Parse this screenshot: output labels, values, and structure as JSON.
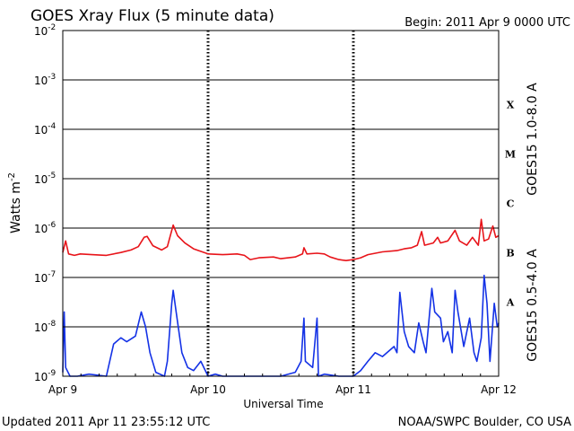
{
  "chart_data": {
    "type": "line",
    "title": "GOES Xray Flux (5 minute data)",
    "begin": "Begin:  2011 Apr 9 0000 UTC",
    "xlabel": "Universal Time",
    "ylabel": "Watts m",
    "ylabel_exp": "-2",
    "yscale": "log",
    "ylim": [
      1e-09,
      0.01
    ],
    "ytick_labels": [
      {
        "value": 1e-09,
        "base": "10",
        "exp": "-9"
      },
      {
        "value": 1e-08,
        "base": "10",
        "exp": "-8"
      },
      {
        "value": 1e-07,
        "base": "10",
        "exp": "-7"
      },
      {
        "value": 1e-06,
        "base": "10",
        "exp": "-6"
      },
      {
        "value": 1e-05,
        "base": "10",
        "exp": "-5"
      },
      {
        "value": 0.0001,
        "base": "10",
        "exp": "-4"
      },
      {
        "value": 0.001,
        "base": "10",
        "exp": "-3"
      },
      {
        "value": 0.01,
        "base": "10",
        "exp": "-2"
      }
    ],
    "x_range_days": [
      0,
      3
    ],
    "x_ticks": [
      {
        "day": 0,
        "label": "Apr 9"
      },
      {
        "day": 1,
        "label": "Apr 10"
      },
      {
        "day": 2,
        "label": "Apr 11"
      },
      {
        "day": 3,
        "label": "Apr 12"
      }
    ],
    "flare_classes": [
      {
        "label": "X",
        "min": 0.0001,
        "max": 0.001
      },
      {
        "label": "M",
        "min": 1e-05,
        "max": 0.0001
      },
      {
        "label": "C",
        "min": 1e-06,
        "max": 1e-05
      },
      {
        "label": "B",
        "min": 1e-07,
        "max": 1e-06
      },
      {
        "label": "A",
        "min": 1e-08,
        "max": 1e-07
      }
    ],
    "grid": true,
    "series": [
      {
        "name": "GOES15 1.0-8.0 A",
        "color": "#e8141a",
        "points": [
          [
            0.0,
            3.2e-07
          ],
          [
            0.02,
            5.5e-07
          ],
          [
            0.04,
            3e-07
          ],
          [
            0.08,
            2.8e-07
          ],
          [
            0.12,
            3e-07
          ],
          [
            0.2,
            2.9e-07
          ],
          [
            0.3,
            2.8e-07
          ],
          [
            0.4,
            3.2e-07
          ],
          [
            0.47,
            3.6e-07
          ],
          [
            0.52,
            4.2e-07
          ],
          [
            0.56,
            6.5e-07
          ],
          [
            0.58,
            6.8e-07
          ],
          [
            0.62,
            4.4e-07
          ],
          [
            0.68,
            3.6e-07
          ],
          [
            0.72,
            4.2e-07
          ],
          [
            0.76,
            1.15e-06
          ],
          [
            0.79,
            7e-07
          ],
          [
            0.84,
            5e-07
          ],
          [
            0.9,
            3.8e-07
          ],
          [
            0.96,
            3.3e-07
          ],
          [
            1.0,
            3e-07
          ],
          [
            1.1,
            2.9e-07
          ],
          [
            1.2,
            3e-07
          ],
          [
            1.25,
            2.8e-07
          ],
          [
            1.29,
            2.3e-07
          ],
          [
            1.35,
            2.5e-07
          ],
          [
            1.45,
            2.6e-07
          ],
          [
            1.5,
            2.4e-07
          ],
          [
            1.6,
            2.6e-07
          ],
          [
            1.65,
            3e-07
          ],
          [
            1.66,
            4e-07
          ],
          [
            1.68,
            3e-07
          ],
          [
            1.75,
            3.1e-07
          ],
          [
            1.8,
            3e-07
          ],
          [
            1.84,
            2.6e-07
          ],
          [
            1.9,
            2.3e-07
          ],
          [
            1.95,
            2.2e-07
          ],
          [
            2.0,
            2.3e-07
          ],
          [
            2.05,
            2.5e-07
          ],
          [
            2.1,
            2.9e-07
          ],
          [
            2.2,
            3.3e-07
          ],
          [
            2.3,
            3.5e-07
          ],
          [
            2.35,
            3.8e-07
          ],
          [
            2.4,
            4e-07
          ],
          [
            2.44,
            4.5e-07
          ],
          [
            2.47,
            8.5e-07
          ],
          [
            2.49,
            4.5e-07
          ],
          [
            2.55,
            5e-07
          ],
          [
            2.58,
            6.5e-07
          ],
          [
            2.6,
            5e-07
          ],
          [
            2.65,
            5.5e-07
          ],
          [
            2.7,
            9e-07
          ],
          [
            2.73,
            5.5e-07
          ],
          [
            2.78,
            4.5e-07
          ],
          [
            2.82,
            6.5e-07
          ],
          [
            2.86,
            4.5e-07
          ],
          [
            2.88,
            1.5e-06
          ],
          [
            2.9,
            5.5e-07
          ],
          [
            2.93,
            6e-07
          ],
          [
            2.96,
            1.1e-06
          ],
          [
            2.98,
            6.5e-07
          ],
          [
            3.0,
            7e-07
          ]
        ]
      },
      {
        "name": "GOES15 0.5-4.0 A",
        "color": "#1432e6",
        "points": [
          [
            0.0,
            1.2e-09
          ],
          [
            0.01,
            2e-08
          ],
          [
            0.02,
            1.5e-09
          ],
          [
            0.05,
            1e-09
          ],
          [
            0.1,
            1e-09
          ],
          [
            0.18,
            1.1e-09
          ],
          [
            0.3,
            1e-09
          ],
          [
            0.35,
            4.5e-09
          ],
          [
            0.4,
            6e-09
          ],
          [
            0.44,
            5e-09
          ],
          [
            0.5,
            6.5e-09
          ],
          [
            0.54,
            2e-08
          ],
          [
            0.57,
            1e-08
          ],
          [
            0.6,
            3e-09
          ],
          [
            0.64,
            1.2e-09
          ],
          [
            0.7,
            1e-09
          ],
          [
            0.72,
            2e-09
          ],
          [
            0.75,
            3e-08
          ],
          [
            0.76,
            5.5e-08
          ],
          [
            0.78,
            2e-08
          ],
          [
            0.82,
            3e-09
          ],
          [
            0.86,
            1.5e-09
          ],
          [
            0.9,
            1.3e-09
          ],
          [
            0.95,
            2e-09
          ],
          [
            1.0,
            1e-09
          ],
          [
            1.05,
            1.1e-09
          ],
          [
            1.1,
            1e-09
          ],
          [
            1.2,
            1e-09
          ],
          [
            1.3,
            1e-09
          ],
          [
            1.4,
            1e-09
          ],
          [
            1.5,
            1e-09
          ],
          [
            1.6,
            1.2e-09
          ],
          [
            1.64,
            2e-09
          ],
          [
            1.66,
            1.5e-08
          ],
          [
            1.67,
            2e-09
          ],
          [
            1.72,
            1.5e-09
          ],
          [
            1.75,
            1.5e-08
          ],
          [
            1.76,
            1e-09
          ],
          [
            1.8,
            1.1e-09
          ],
          [
            1.9,
            1e-09
          ],
          [
            2.0,
            1e-09
          ],
          [
            2.05,
            1.3e-09
          ],
          [
            2.1,
            2e-09
          ],
          [
            2.15,
            3e-09
          ],
          [
            2.2,
            2.5e-09
          ],
          [
            2.28,
            4e-09
          ],
          [
            2.3,
            3e-09
          ],
          [
            2.32,
            5e-08
          ],
          [
            2.35,
            8e-09
          ],
          [
            2.38,
            4e-09
          ],
          [
            2.42,
            3e-09
          ],
          [
            2.45,
            1.2e-08
          ],
          [
            2.48,
            5e-09
          ],
          [
            2.5,
            3e-09
          ],
          [
            2.54,
            6e-08
          ],
          [
            2.56,
            2e-08
          ],
          [
            2.6,
            1.5e-08
          ],
          [
            2.62,
            5e-09
          ],
          [
            2.65,
            8e-09
          ],
          [
            2.68,
            3e-09
          ],
          [
            2.7,
            5.5e-08
          ],
          [
            2.72,
            2e-08
          ],
          [
            2.76,
            4e-09
          ],
          [
            2.8,
            1.5e-08
          ],
          [
            2.83,
            3e-09
          ],
          [
            2.85,
            2e-09
          ],
          [
            2.88,
            6e-09
          ],
          [
            2.9,
            1.1e-07
          ],
          [
            2.92,
            3e-08
          ],
          [
            2.94,
            2e-09
          ],
          [
            2.97,
            3e-08
          ],
          [
            2.99,
            1e-08
          ],
          [
            3.0,
            1.2e-08
          ]
        ]
      }
    ],
    "updated": "Updated 2011 Apr 11 23:55:12 UTC",
    "credit": "NOAA/SWPC Boulder, CO USA"
  }
}
